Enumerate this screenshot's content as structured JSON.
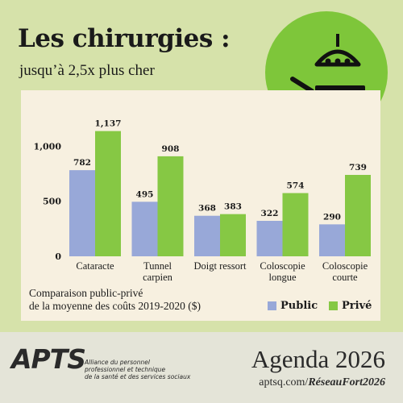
{
  "header": {
    "title": "Les chirurgies :",
    "subtitle": "jusqu’à 2,5x plus cher"
  },
  "badge": {
    "icon": "surgery-light-and-table-icon",
    "color": "#7ec63a"
  },
  "chart_data": {
    "type": "bar",
    "categories": [
      [
        "Cataracte"
      ],
      [
        "Tunnel",
        "carpien"
      ],
      [
        "Doigt ressort"
      ],
      [
        "Coloscopie",
        "longue"
      ],
      [
        "Coloscopie",
        "courte"
      ]
    ],
    "series": [
      {
        "name": "Public",
        "values": [
          782,
          495,
          368,
          322,
          290
        ],
        "value_labels": [
          "782",
          "495",
          "368",
          "322",
          "290"
        ],
        "color": "#98a8d8"
      },
      {
        "name": "Privé",
        "values": [
          1137,
          908,
          383,
          574,
          739
        ],
        "value_labels": [
          "1,137",
          "908",
          "383",
          "574",
          "739"
        ],
        "color": "#86c844"
      }
    ],
    "yticks": [
      0,
      500,
      1000
    ],
    "ytick_labels": [
      "0",
      "500",
      "1,000"
    ],
    "ylim": [
      0,
      1200
    ],
    "grid": false,
    "legend_position": "bottom-right"
  },
  "note": {
    "line1": "Comparaison public-privé",
    "line2": "de la moyenne des coûts 2019-2020 ($)"
  },
  "legend": [
    {
      "label": "Public",
      "color": "#98a8d8"
    },
    {
      "label": "Privé",
      "color": "#86c844"
    }
  ],
  "footer": {
    "logo": "APTS",
    "org_line1": "Alliance du personnel",
    "org_line2": "professionnel et technique",
    "org_line3": "de la santé et des services sociaux",
    "agenda": "Agenda 2026",
    "url_prefix": "aptsq.com/",
    "url_bold": "RéseauFort2026"
  }
}
